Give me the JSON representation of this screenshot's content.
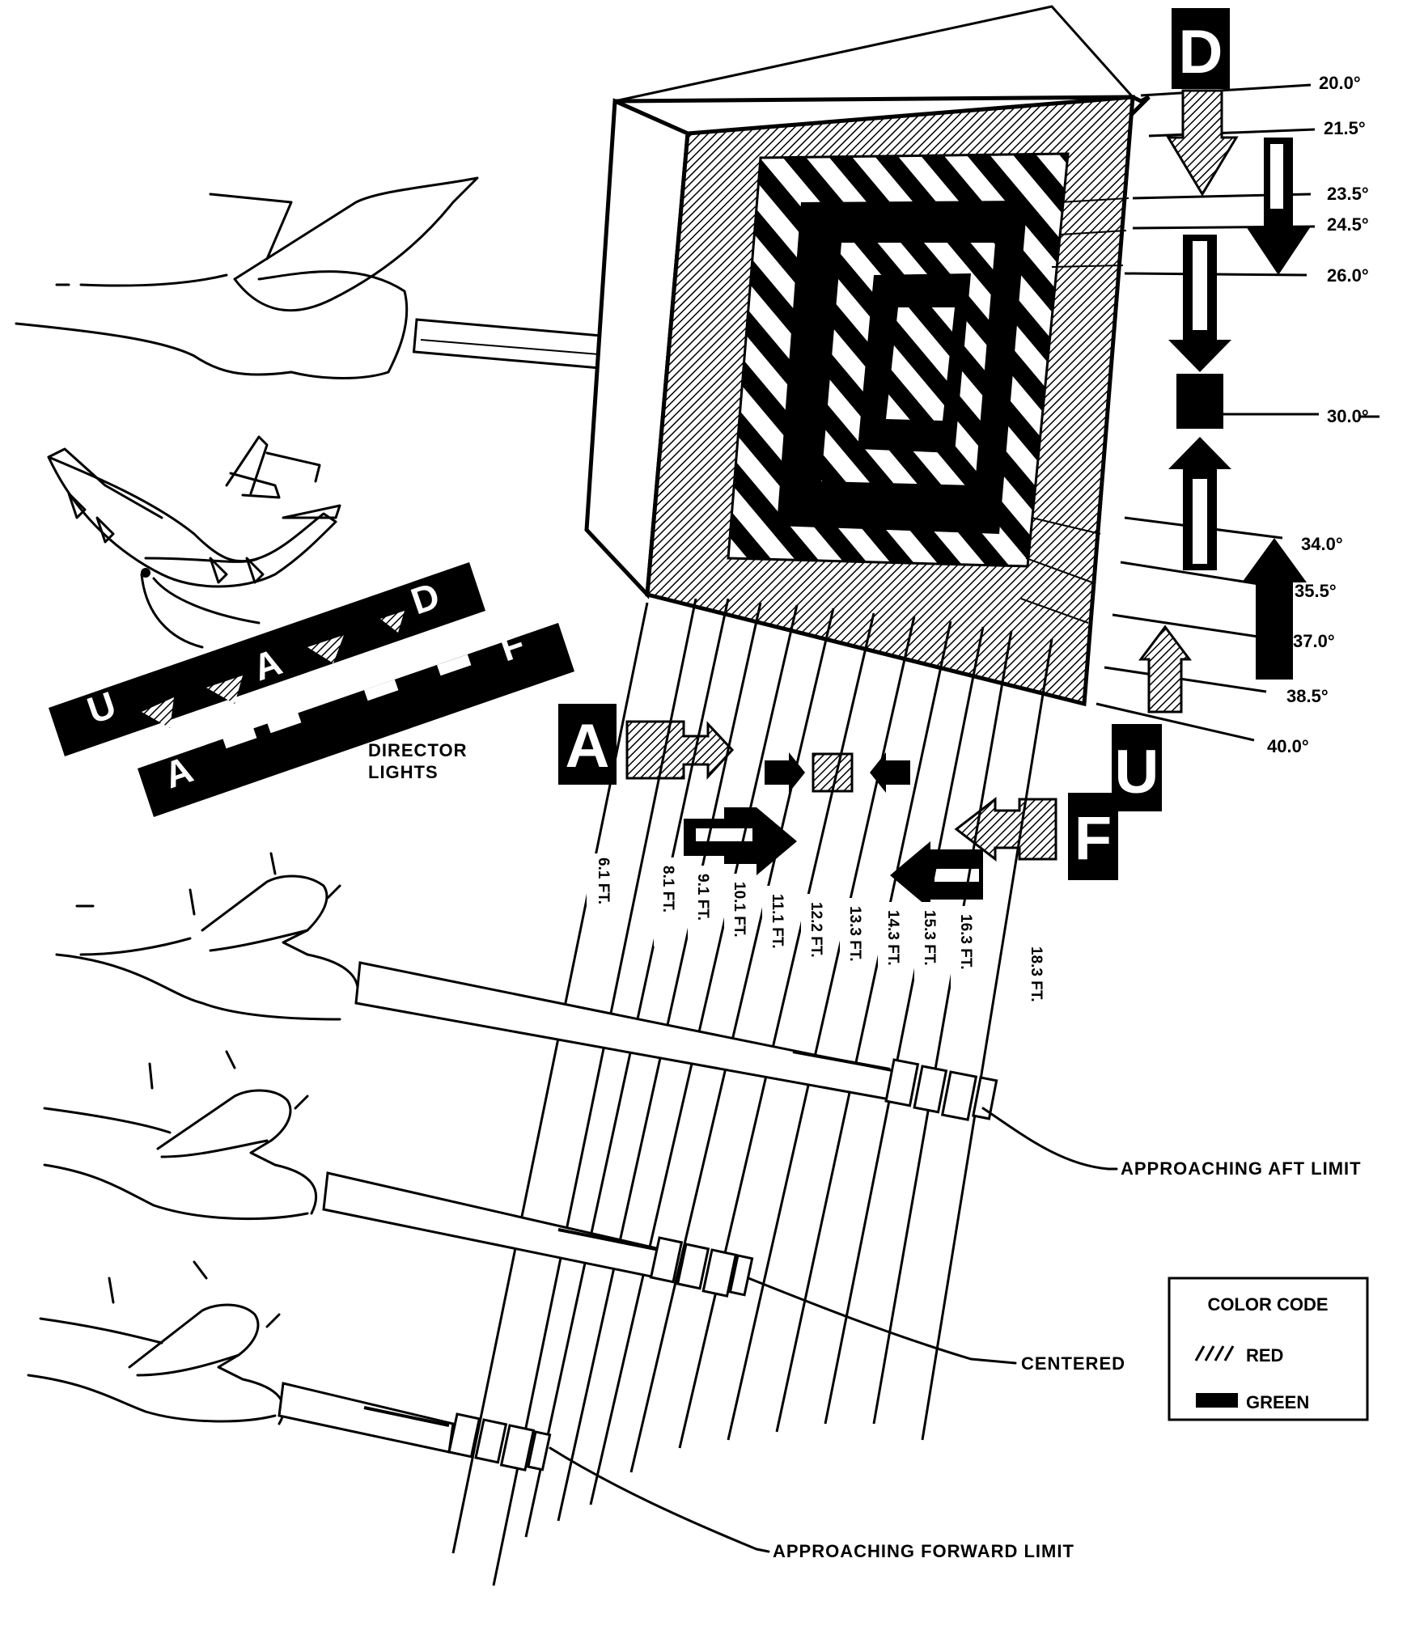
{
  "letters": {
    "down": "D",
    "up": "U",
    "aft": "A",
    "fore": "F"
  },
  "elevation_angles": [
    "20.0°",
    "21.5°",
    "23.5°",
    "24.5°",
    "26.0°",
    "30.0°",
    "34.0°",
    "35.5°",
    "37.0°",
    "38.5°",
    "40.0°"
  ],
  "distances": [
    "6.1 FT.",
    "8.1 FT.",
    "9.1 FT.",
    "10.1 FT.",
    "11.1 FT.",
    "12.2 FT.",
    "13.3 FT.",
    "14.3 FT.",
    "15.3 FT.",
    "16.3 FT.",
    "18.3 FT."
  ],
  "director_lights": {
    "line1": "DIRECTOR",
    "line2": "LIGHTS",
    "strip_top": [
      "U",
      "A",
      "D"
    ],
    "strip_bottom": [
      "A",
      "F"
    ]
  },
  "callouts": {
    "aft_limit": "APPROACHING AFT LIMIT",
    "centered": "CENTERED",
    "forward_limit": "APPROACHING FORWARD LIMIT"
  },
  "legend": {
    "title": "COLOR CODE",
    "items": [
      {
        "label": "RED",
        "swatch": "hatched"
      },
      {
        "label": "GREEN",
        "swatch": "solid"
      }
    ]
  },
  "colors": {
    "ink": "#000000",
    "paper": "#ffffff"
  }
}
